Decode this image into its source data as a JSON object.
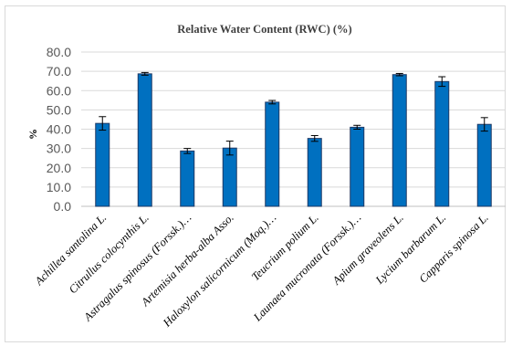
{
  "chart_data": {
    "type": "bar",
    "title": "Relative Water Content (RWC) (%)",
    "ylabel": "%",
    "xlabel": "",
    "ylim": [
      0,
      80
    ],
    "yticks": [
      "0.0",
      "10.0",
      "20.0",
      "30.0",
      "40.0",
      "50.0",
      "60.0",
      "70.0",
      "80.0"
    ],
    "grid": true,
    "categories": [
      "Achillea santolina L.",
      "Citrullus colocynthis L.",
      "Astragalus spinosus (Forssk.)…",
      "Artemisia herba-alba Asso.",
      "Haloxylon salicornicum (Moq.)…",
      "Teucrium polium L.",
      "Launaea mucronata (Forssk.)…",
      "Apium graveolens L.",
      "Lycium barbarum L.",
      "Capparis spinosa L."
    ],
    "values": [
      43.0,
      68.7,
      28.7,
      30.2,
      54.0,
      35.2,
      41.0,
      68.3,
      64.7,
      42.5
    ],
    "errors": [
      3.5,
      0.7,
      1.3,
      3.6,
      0.9,
      1.5,
      1.0,
      0.6,
      2.5,
      3.5
    ],
    "colors": {
      "bar": "#0070c0",
      "bar_edge": "#1f3864",
      "grid": "#d9d9d9",
      "error": "#000000"
    }
  }
}
